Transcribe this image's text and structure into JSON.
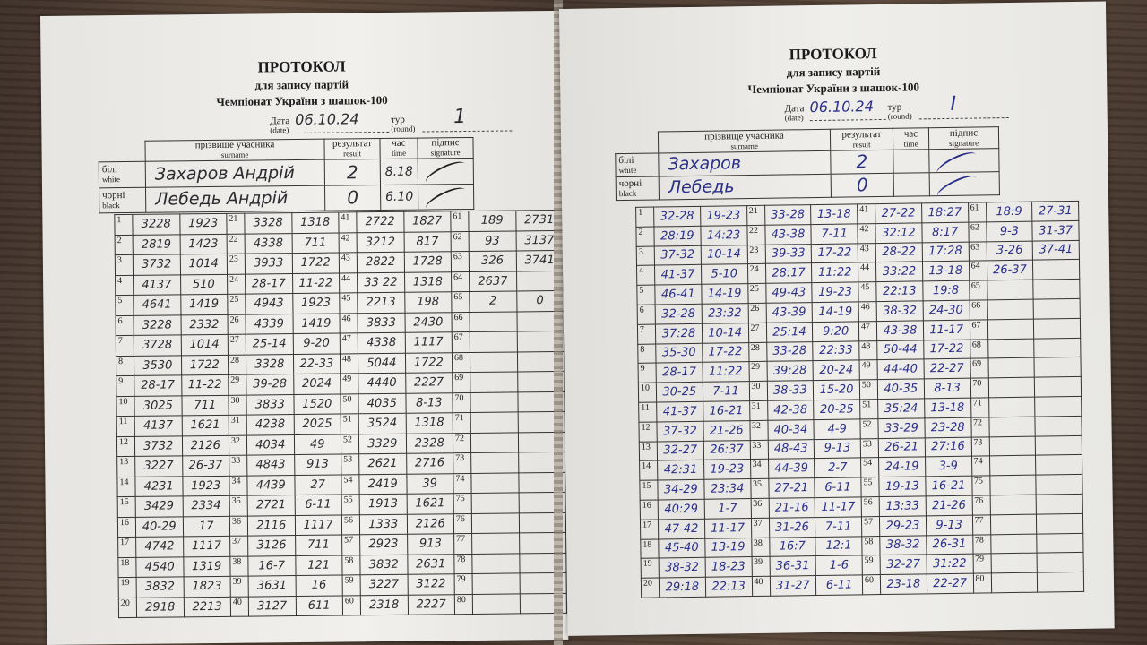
{
  "sheets": [
    {
      "id": "left",
      "title": "ПРОТОКОЛ",
      "subtitle": "для запису партій",
      "event": "Чемпіонат України з шашок-100",
      "date_label": "Дата",
      "date_label_en": "(date)",
      "round_label": "тур",
      "round_label_en": "(round)",
      "date": "06.10.24",
      "round": "1",
      "columns": {
        "surname": "прізвище учасника",
        "surname_en": "surname",
        "result": "результат",
        "result_en": "result",
        "time": "час",
        "time_en": "time",
        "signature": "підпис",
        "signature_en": "signature"
      },
      "white": {
        "label": "білі",
        "label_en": "white",
        "name": "Захаров Андрій",
        "result": "2",
        "time": "8.18"
      },
      "black": {
        "label": "чорні",
        "label_en": "black",
        "name": "Лебедь Андрій",
        "result": "0",
        "time": "6.10"
      },
      "moves": [
        [
          "3228",
          "1923"
        ],
        [
          "2819",
          "1423"
        ],
        [
          "3732",
          "1014"
        ],
        [
          "4137",
          "510"
        ],
        [
          "4641",
          "1419"
        ],
        [
          "3228",
          "2332"
        ],
        [
          "3728",
          "1014"
        ],
        [
          "3530",
          "1722"
        ],
        [
          "28-17",
          "11-22"
        ],
        [
          "3025",
          "711"
        ],
        [
          "4137",
          "1621"
        ],
        [
          "3732",
          "2126"
        ],
        [
          "3227",
          "26-37"
        ],
        [
          "4231",
          "1923"
        ],
        [
          "3429",
          "2334"
        ],
        [
          "40-29",
          "17"
        ],
        [
          "4742",
          "1117"
        ],
        [
          "4540",
          "1319"
        ],
        [
          "3832",
          "1823"
        ],
        [
          "2918",
          "2213"
        ],
        [
          "3328",
          "1318"
        ],
        [
          "4338",
          "711"
        ],
        [
          "3933",
          "1722"
        ],
        [
          "28-17",
          "11-22"
        ],
        [
          "4943",
          "1923"
        ],
        [
          "4339",
          "1419"
        ],
        [
          "25-14",
          "9-20"
        ],
        [
          "3328",
          "22-33"
        ],
        [
          "39-28",
          "2024"
        ],
        [
          "3833",
          "1520"
        ],
        [
          "4238",
          "2025"
        ],
        [
          "4034",
          "49"
        ],
        [
          "4843",
          "913"
        ],
        [
          "4439",
          "27"
        ],
        [
          "2721",
          "6-11"
        ],
        [
          "2116",
          "1117"
        ],
        [
          "3126",
          "711"
        ],
        [
          "16-7",
          "121"
        ],
        [
          "3631",
          "16"
        ],
        [
          "3127",
          "611"
        ],
        [
          "2722",
          "1827"
        ],
        [
          "3212",
          "817"
        ],
        [
          "2822",
          "1728"
        ],
        [
          "33 22",
          "1318"
        ],
        [
          "2213",
          "198"
        ],
        [
          "3833",
          "2430"
        ],
        [
          "4338",
          "1117"
        ],
        [
          "5044",
          "1722"
        ],
        [
          "4440",
          "2227"
        ],
        [
          "4035",
          "8-13"
        ],
        [
          "3524",
          "1318"
        ],
        [
          "3329",
          "2328"
        ],
        [
          "2621",
          "2716"
        ],
        [
          "2419",
          "39"
        ],
        [
          "1913",
          "1621"
        ],
        [
          "1333",
          "2126"
        ],
        [
          "2923",
          "913"
        ],
        [
          "3832",
          "2631"
        ],
        [
          "3227",
          "3122"
        ],
        [
          "2318",
          "2227"
        ],
        [
          "189",
          "2731"
        ],
        [
          "93",
          "3137"
        ],
        [
          "326",
          "3741"
        ],
        [
          "2637",
          ""
        ],
        [
          "2",
          "0"
        ]
      ]
    },
    {
      "id": "right",
      "title": "ПРОТОКОЛ",
      "subtitle": "для запису партій",
      "event": "Чемпіонат України з шашок-100",
      "date_label": "Дата",
      "date_label_en": "(date)",
      "round_label": "тур",
      "round_label_en": "(round)",
      "date": "06.10.24",
      "round": "I",
      "columns": {
        "surname": "прізвище учасника",
        "surname_en": "surname",
        "result": "результат",
        "result_en": "result",
        "time": "час",
        "time_en": "time",
        "signature": "підпис",
        "signature_en": "signature"
      },
      "white": {
        "label": "білі",
        "label_en": "white",
        "name": "Захаров",
        "result": "2",
        "time": ""
      },
      "black": {
        "label": "чорні",
        "label_en": "black",
        "name": "Лебедь",
        "result": "0",
        "time": ""
      },
      "moves": [
        [
          "32-28",
          "19-23"
        ],
        [
          "28:19",
          "14:23"
        ],
        [
          "37-32",
          "10-14"
        ],
        [
          "41-37",
          "5-10"
        ],
        [
          "46-41",
          "14-19"
        ],
        [
          "32-28",
          "23:32"
        ],
        [
          "37:28",
          "10-14"
        ],
        [
          "35-30",
          "17-22"
        ],
        [
          "28-17",
          "11:22"
        ],
        [
          "30-25",
          "7-11"
        ],
        [
          "41-37",
          "16-21"
        ],
        [
          "37-32",
          "21-26"
        ],
        [
          "32-27",
          "26:37"
        ],
        [
          "42:31",
          "19-23"
        ],
        [
          "34-29",
          "23:34"
        ],
        [
          "40:29",
          "1-7"
        ],
        [
          "47-42",
          "11-17"
        ],
        [
          "45-40",
          "13-19"
        ],
        [
          "38-32",
          "18-23"
        ],
        [
          "29:18",
          "22:13"
        ],
        [
          "33-28",
          "13-18"
        ],
        [
          "43-38",
          "7-11"
        ],
        [
          "39-33",
          "17-22"
        ],
        [
          "28:17",
          "11:22"
        ],
        [
          "49-43",
          "19-23"
        ],
        [
          "43-39",
          "14-19"
        ],
        [
          "25:14",
          "9:20"
        ],
        [
          "33-28",
          "22:33"
        ],
        [
          "39:28",
          "20-24"
        ],
        [
          "38-33",
          "15-20"
        ],
        [
          "42-38",
          "20-25"
        ],
        [
          "40-34",
          "4-9"
        ],
        [
          "48-43",
          "9-13"
        ],
        [
          "44-39",
          "2-7"
        ],
        [
          "27-21",
          "6-11"
        ],
        [
          "21-16",
          "11-17"
        ],
        [
          "31-26",
          "7-11"
        ],
        [
          "16:7",
          "12:1"
        ],
        [
          "36-31",
          "1-6"
        ],
        [
          "31-27",
          "6-11"
        ],
        [
          "27-22",
          "18:27"
        ],
        [
          "32:12",
          "8:17"
        ],
        [
          "28-22",
          "17:28"
        ],
        [
          "33:22",
          "13-18"
        ],
        [
          "22:13",
          "19:8"
        ],
        [
          "38-32",
          "24-30"
        ],
        [
          "43-38",
          "11-17"
        ],
        [
          "50-44",
          "17-22"
        ],
        [
          "44-40",
          "22-27"
        ],
        [
          "40-35",
          "8-13"
        ],
        [
          "35:24",
          "13-18"
        ],
        [
          "33-29",
          "23-28"
        ],
        [
          "26-21",
          "27:16"
        ],
        [
          "24-19",
          "3-9"
        ],
        [
          "19-13",
          "16-21"
        ],
        [
          "13:33",
          "21-26"
        ],
        [
          "29-23",
          "9-13"
        ],
        [
          "38-32",
          "26-31"
        ],
        [
          "32-27",
          "31:22"
        ],
        [
          "23-18",
          "22-27"
        ],
        [
          "18:9",
          "27-31"
        ],
        [
          "9-3",
          "31-37"
        ],
        [
          "3-26",
          "37-41"
        ],
        [
          "26-37",
          ""
        ]
      ]
    }
  ]
}
